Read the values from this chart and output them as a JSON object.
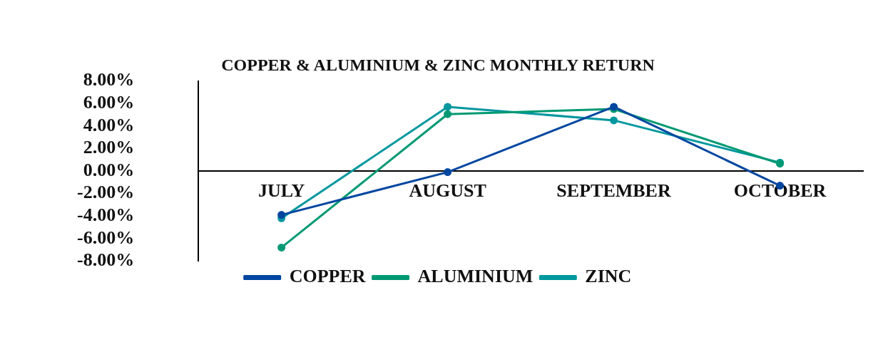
{
  "chart_data": {
    "type": "line",
    "title": "COPPER & ALUMINIUM & ZINC MONTHLY RETURN",
    "categories": [
      "JULY",
      "AUGUST",
      "SEPTEMBER",
      "OCTOBER"
    ],
    "series": [
      {
        "name": "COPPER",
        "color": "#0047a0",
        "values": [
          -3.9,
          -0.1,
          5.7,
          -1.3
        ]
      },
      {
        "name": "ALUMINIUM",
        "color": "#009973",
        "values": [
          -6.8,
          5.05,
          5.5,
          0.65
        ]
      },
      {
        "name": "ZINC",
        "color": "#00979f",
        "values": [
          -4.2,
          5.7,
          4.5,
          0.75
        ]
      }
    ],
    "ylim": [
      -8,
      8
    ],
    "yticks": [
      {
        "value": -8,
        "label": "-8.00%"
      },
      {
        "value": -6,
        "label": "-6.00%"
      },
      {
        "value": -4,
        "label": "-4.00%"
      },
      {
        "value": -2,
        "label": "-2.00%"
      },
      {
        "value": 0,
        "label": "0.00%"
      },
      {
        "value": 2,
        "label": "2.00%"
      },
      {
        "value": 4,
        "label": "4.00%"
      },
      {
        "value": 6,
        "label": "6.00%"
      },
      {
        "value": 8,
        "label": "8.00%"
      }
    ],
    "grid": false,
    "legend": "bottom",
    "marker": "circle",
    "line_style": "solid"
  }
}
